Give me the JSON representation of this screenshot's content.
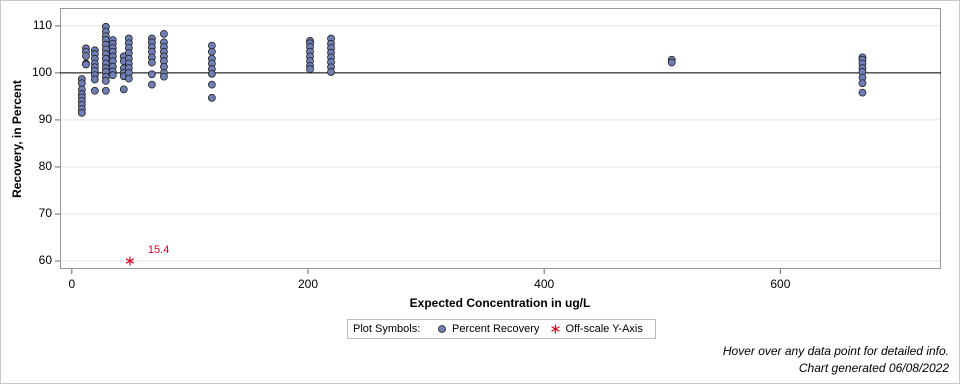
{
  "chart_data": {
    "type": "scatter",
    "x_label": "Expected Concentration in ug/L",
    "y_label": "Recovery, in Percent",
    "xlim": [
      -10,
      736
    ],
    "xticks": [
      0,
      200,
      400,
      600
    ],
    "ylim": [
      58.3,
      113.8
    ],
    "yticks": [
      60,
      70,
      80,
      90,
      100,
      110
    ],
    "grid": true,
    "reference_line": 100,
    "legend_title": "Plot Symbols:",
    "series": [
      {
        "name": "Percent Recovery",
        "color": "#6f7fb5",
        "marker": "circle",
        "x": [
          8.5,
          8.5,
          8.5,
          8.5,
          8.5,
          8.5,
          8.5,
          8.5,
          8.5,
          12,
          12,
          12,
          12,
          12,
          19.5,
          19.5,
          19.5,
          19.5,
          19.5,
          19.5,
          19.5,
          19.5,
          19.5,
          28.8,
          28.8,
          28.8,
          28.8,
          28.8,
          28.8,
          28.8,
          28.8,
          28.8,
          28.8,
          28.8,
          28.8,
          28.8,
          28.8,
          34.7,
          34.7,
          34.7,
          34.7,
          34.7,
          34.7,
          34.7,
          34.7,
          34.7,
          44,
          44,
          44,
          44,
          44,
          44,
          48.3,
          48.3,
          48.3,
          48.3,
          48.3,
          48.3,
          48.3,
          48.3,
          48.3,
          67.8,
          67.8,
          67.8,
          67.8,
          67.8,
          67.8,
          67.8,
          67.8,
          78,
          78,
          78,
          78,
          78,
          78,
          78,
          78,
          78,
          118.6,
          118.6,
          118.6,
          118.6,
          118.6,
          118.6,
          118.6,
          118.6,
          201.7,
          201.7,
          201.7,
          201.7,
          201.7,
          201.7,
          201.7,
          201.7,
          219.5,
          219.5,
          219.5,
          219.5,
          219.5,
          219.5,
          219.5,
          219.5,
          508,
          508,
          669.5,
          669.5,
          669.5,
          669.5,
          669.5,
          669.5,
          669.5,
          669.5
        ],
        "values": [
          98.7,
          97.8,
          96.5,
          95.5,
          94.8,
          94,
          93.2,
          92.3,
          91.5,
          105.2,
          104.5,
          103.6,
          102,
          101.8,
          104.8,
          104,
          103,
          102,
          101.2,
          100.4,
          99.5,
          98.6,
          96.2,
          109.8,
          108.8,
          107.8,
          107,
          106,
          105,
          104,
          103,
          102,
          101,
          100.2,
          99.2,
          98.3,
          96.2,
          107,
          106.2,
          105.3,
          104.5,
          103.5,
          102.5,
          101.3,
          100.3,
          99.5,
          103.5,
          102.5,
          101,
          100,
          99.3,
          96.5,
          107.3,
          106.3,
          105.3,
          104.2,
          103,
          102,
          101,
          100,
          98.8,
          107.3,
          106.5,
          105.5,
          104.5,
          103.3,
          102.2,
          99.7,
          97.5,
          108.3,
          106.5,
          105.5,
          104.5,
          103.5,
          102.5,
          101.3,
          100,
          99.2,
          105.8,
          104.5,
          103,
          102,
          100.8,
          99.8,
          97.5,
          94.7,
          106.8,
          106.3,
          105.5,
          104.5,
          103.5,
          102.5,
          101.5,
          100.8,
          107.3,
          106.2,
          105.3,
          104.3,
          103.3,
          102.3,
          101.2,
          100.2,
          102.8,
          102.2,
          103.3,
          102.8,
          102,
          101,
          100.2,
          99,
          97.8,
          95.8
        ]
      },
      {
        "name": "Off-scale Y-Axis",
        "color": "#e0001b",
        "marker": "star",
        "x": [
          49.2
        ],
        "values": [
          60
        ]
      }
    ],
    "annotations": [
      "15.4"
    ],
    "footer": [
      "Hover over any data point for detailed info.",
      "Chart generated 06/08/2022"
    ]
  }
}
